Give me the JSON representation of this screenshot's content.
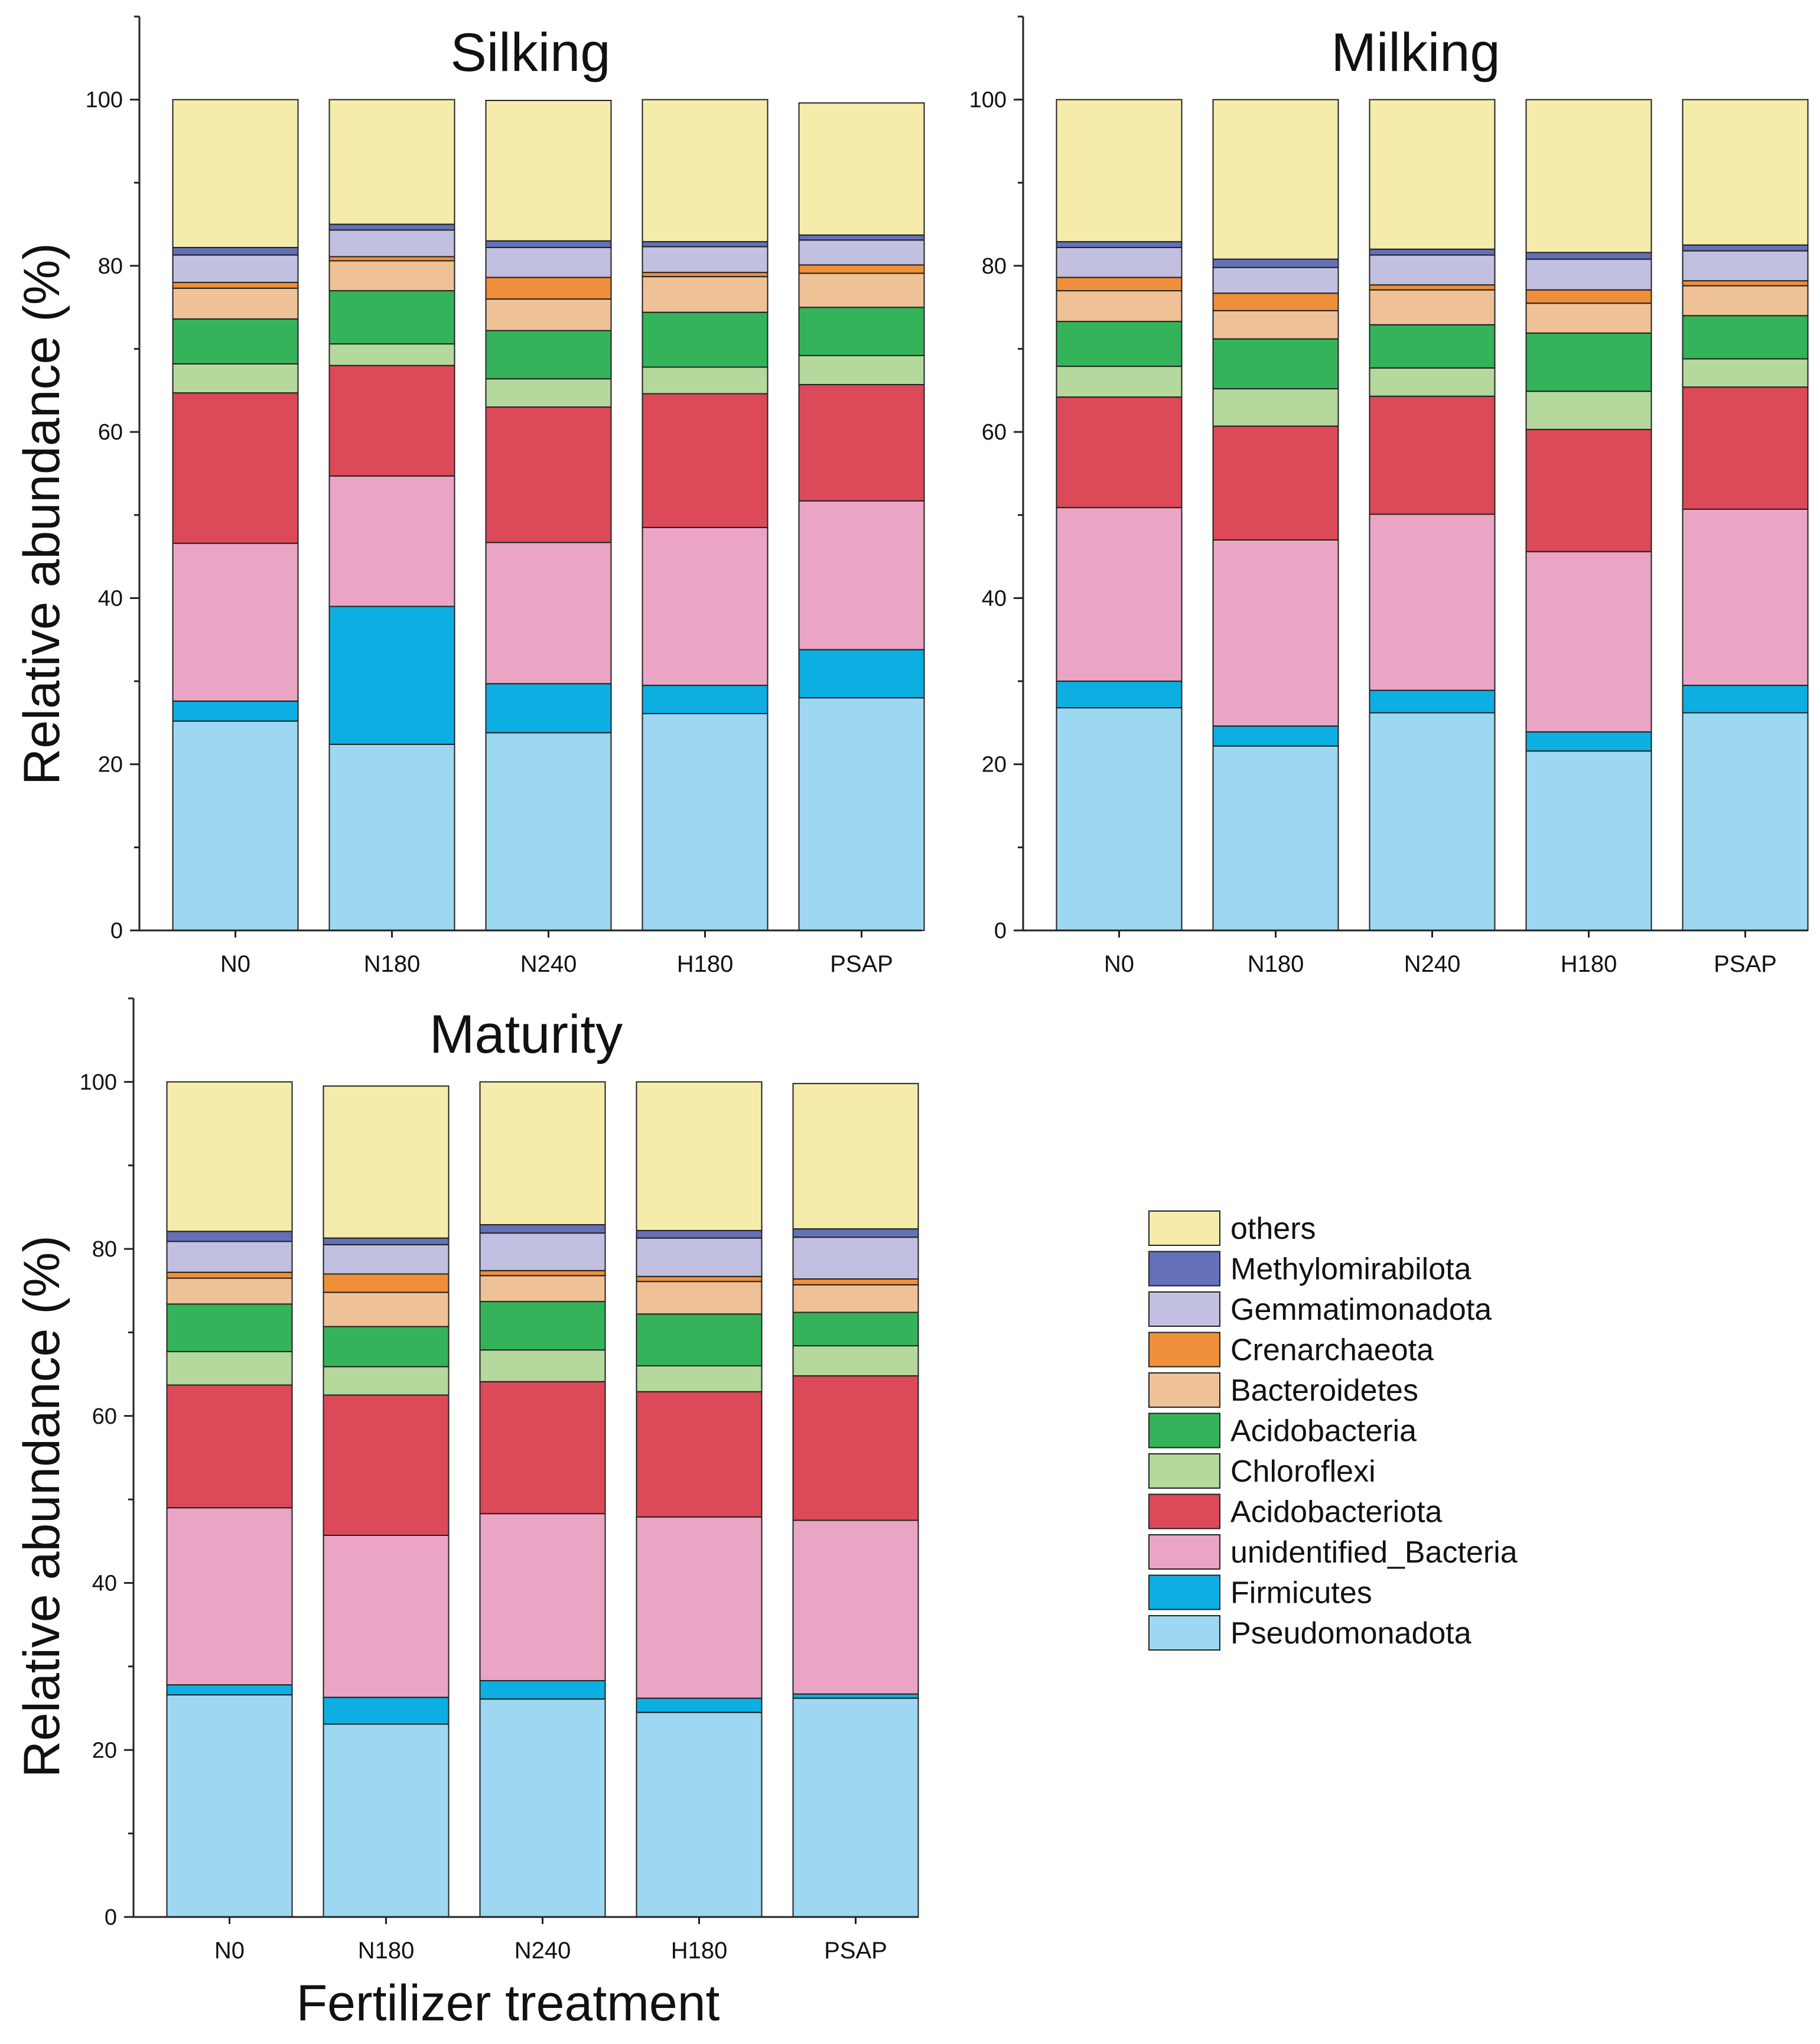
{
  "figure": {
    "ylabel": "Relative abundance (%)",
    "xlabel": "Fertilizer treatment"
  },
  "legend": {
    "entries": [
      {
        "name": "others",
        "color": "#f5ecac"
      },
      {
        "name": "Methylomirabilota",
        "color": "#6470b8"
      },
      {
        "name": "Gemmatimonadota",
        "color": "#c1c0e0"
      },
      {
        "name": "Crenarchaeota",
        "color": "#ef8f3a"
      },
      {
        "name": "Bacteroidetes",
        "color": "#efc196"
      },
      {
        "name": "Acidobacteria",
        "color": "#34b35a"
      },
      {
        "name": "Chloroflexi",
        "color": "#b5d89d"
      },
      {
        "name": "Acidobacteriota",
        "color": "#dc4958"
      },
      {
        "name": "unidentified_Bacteria",
        "color": "#eaa5c4"
      },
      {
        "name": "Firmicutes",
        "color": "#0daee2"
      },
      {
        "name": "Pseudomonadota",
        "color": "#9dd7f1"
      }
    ]
  },
  "chart_data": [
    {
      "type": "bar",
      "stacked": true,
      "title": "Silking",
      "xlabel": "",
      "ylabel": "Relative abundance (%)",
      "ylim": [
        0,
        110
      ],
      "yticks": [
        0,
        20,
        40,
        60,
        80,
        100
      ],
      "categories": [
        "N0",
        "N180",
        "N240",
        "H180",
        "PSAP"
      ],
      "series": [
        {
          "name": "Pseudomonadota",
          "values": [
            25.2,
            22.4,
            23.8,
            26.1,
            28.0
          ]
        },
        {
          "name": "Firmicutes",
          "values": [
            2.4,
            16.6,
            5.9,
            3.4,
            5.8
          ]
        },
        {
          "name": "unidentified_Bacteria",
          "values": [
            19.0,
            15.7,
            17.0,
            19.0,
            17.9
          ]
        },
        {
          "name": "Acidobacteriota",
          "values": [
            18.1,
            13.3,
            16.3,
            16.1,
            14.0
          ]
        },
        {
          "name": "Chloroflexi",
          "values": [
            3.5,
            2.6,
            3.4,
            3.2,
            3.5
          ]
        },
        {
          "name": "Acidobacteria",
          "values": [
            5.4,
            6.4,
            5.8,
            6.6,
            5.8
          ]
        },
        {
          "name": "Bacteroidetes",
          "values": [
            3.7,
            3.6,
            3.8,
            4.3,
            4.1
          ]
        },
        {
          "name": "Crenarchaeota",
          "values": [
            0.7,
            0.5,
            2.6,
            0.5,
            1.0
          ]
        },
        {
          "name": "Gemmatimonadota",
          "values": [
            3.3,
            3.2,
            3.6,
            3.1,
            3.0
          ]
        },
        {
          "name": "Methylomirabilota",
          "values": [
            0.9,
            0.7,
            0.8,
            0.6,
            0.6
          ]
        },
        {
          "name": "others",
          "values": [
            17.8,
            15.0,
            16.9,
            17.1,
            15.9
          ]
        }
      ]
    },
    {
      "type": "bar",
      "stacked": true,
      "title": "Milking",
      "xlabel": "",
      "ylabel": "",
      "ylim": [
        0,
        110
      ],
      "yticks": [
        0,
        20,
        40,
        60,
        80,
        100
      ],
      "categories": [
        "N0",
        "N180",
        "N240",
        "H180",
        "PSAP"
      ],
      "series": [
        {
          "name": "Pseudomonadota",
          "values": [
            26.8,
            22.2,
            26.2,
            21.6,
            26.2
          ]
        },
        {
          "name": "Firmicutes",
          "values": [
            3.2,
            2.4,
            2.7,
            2.3,
            3.3
          ]
        },
        {
          "name": "unidentified_Bacteria",
          "values": [
            20.9,
            22.4,
            21.2,
            21.7,
            21.2
          ]
        },
        {
          "name": "Acidobacteriota",
          "values": [
            13.3,
            13.7,
            14.2,
            14.7,
            14.7
          ]
        },
        {
          "name": "Chloroflexi",
          "values": [
            3.7,
            4.5,
            3.4,
            4.6,
            3.4
          ]
        },
        {
          "name": "Acidobacteria",
          "values": [
            5.4,
            6.0,
            5.2,
            7.0,
            5.2
          ]
        },
        {
          "name": "Bacteroidetes",
          "values": [
            3.7,
            3.4,
            4.2,
            3.6,
            3.6
          ]
        },
        {
          "name": "Crenarchaeota",
          "values": [
            1.6,
            2.1,
            0.6,
            1.6,
            0.6
          ]
        },
        {
          "name": "Gemmatimonadota",
          "values": [
            3.6,
            3.1,
            3.6,
            3.7,
            3.6
          ]
        },
        {
          "name": "Methylomirabilota",
          "values": [
            0.7,
            1.0,
            0.7,
            0.8,
            0.7
          ]
        },
        {
          "name": "others",
          "values": [
            17.1,
            19.2,
            18.0,
            18.4,
            17.5
          ]
        }
      ]
    },
    {
      "type": "bar",
      "stacked": true,
      "title": "Maturity",
      "xlabel": "Fertilizer treatment",
      "ylabel": "Relative abundance (%)",
      "ylim": [
        0,
        110
      ],
      "yticks": [
        0,
        20,
        40,
        60,
        80,
        100
      ],
      "categories": [
        "N0",
        "N180",
        "N240",
        "H180",
        "PSAP"
      ],
      "series": [
        {
          "name": "Pseudomonadota",
          "values": [
            26.6,
            23.1,
            26.1,
            24.5,
            26.2
          ]
        },
        {
          "name": "Firmicutes",
          "values": [
            1.2,
            3.2,
            2.2,
            1.7,
            0.5
          ]
        },
        {
          "name": "unidentified_Bacteria",
          "values": [
            21.2,
            19.4,
            20.0,
            21.7,
            20.8
          ]
        },
        {
          "name": "Acidobacteriota",
          "values": [
            14.7,
            16.8,
            15.8,
            15.0,
            17.3
          ]
        },
        {
          "name": "Chloroflexi",
          "values": [
            4.0,
            3.4,
            3.8,
            3.1,
            3.6
          ]
        },
        {
          "name": "Acidobacteria",
          "values": [
            5.7,
            4.8,
            5.8,
            6.2,
            4.0
          ]
        },
        {
          "name": "Bacteroidetes",
          "values": [
            3.1,
            4.1,
            3.1,
            3.9,
            3.3
          ]
        },
        {
          "name": "Crenarchaeota",
          "values": [
            0.7,
            2.2,
            0.6,
            0.6,
            0.7
          ]
        },
        {
          "name": "Gemmatimonadota",
          "values": [
            3.7,
            3.5,
            4.5,
            4.6,
            5.0
          ]
        },
        {
          "name": "Methylomirabilota",
          "values": [
            1.2,
            0.8,
            1.0,
            0.9,
            1.0
          ]
        },
        {
          "name": "others",
          "values": [
            17.9,
            18.2,
            17.1,
            17.8,
            17.4
          ]
        }
      ]
    }
  ]
}
